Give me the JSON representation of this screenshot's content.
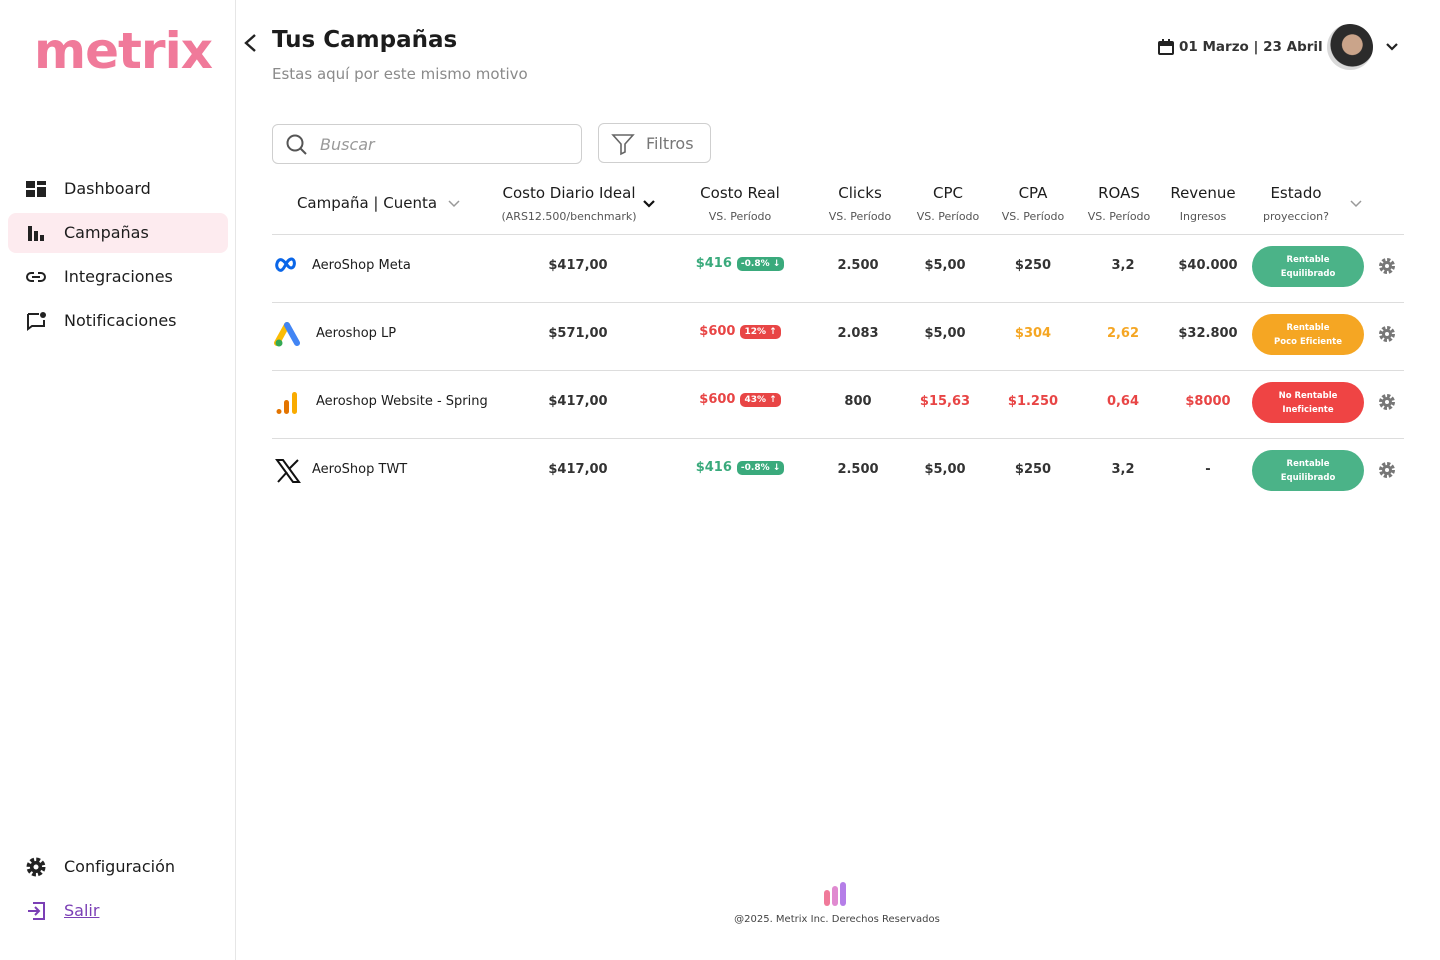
{
  "sidebar": {
    "logo": "metrix",
    "nav": [
      "Dashboard",
      "Campañas",
      "Integraciones",
      "Notificaciones"
    ],
    "active": 1,
    "bottom": [
      "Configuración",
      "Salir"
    ]
  },
  "header": {
    "title": "Tus Campañas",
    "subtitle": "Estas aquí por este mismo motivo",
    "date_range": "01 Marzo | 23 Abril"
  },
  "toolbar": {
    "search": "Buscar",
    "filters": "Filtros"
  },
  "table": {
    "columns": [
      {
        "title": "Campaña | Cuenta"
      },
      {
        "title": "Costo Diario Ideal",
        "subtitle": "(ARS12.500/benchmark)"
      },
      {
        "title": "Costo Real",
        "subtitle": "VS. Período"
      },
      {
        "title": "Clicks",
        "subtitle": "VS. Período"
      },
      {
        "title": "CPC",
        "subtitle": "VS. Período"
      },
      {
        "title": "CPA",
        "subtitle": "VS. Período"
      },
      {
        "title": "ROAS",
        "subtitle": "VS. Período"
      },
      {
        "title": "Revenue",
        "subtitle": "Ingresos"
      },
      {
        "title": "Estado",
        "subtitle": "proyeccion?"
      }
    ],
    "rows": [
      {
        "name": "AeroShop Meta",
        "ideal": "$417,00",
        "real": {
          "text": "$416",
          "badge": "-0.8% ↓",
          "color": "#3aaa7c"
        },
        "metrics": [
          {
            "text": "2.500"
          },
          {
            "text": "$5,00"
          },
          {
            "text": "$250"
          },
          {
            "text": "3,2"
          },
          {
            "text": "$40.000"
          }
        ],
        "status": {
          "lines": [
            "Rentable",
            "Equilibrado"
          ],
          "color": "#4bb388"
        }
      },
      {
        "name": "Aeroshop LP",
        "ideal": "$571,00",
        "real": {
          "text": "$600",
          "badge": "12% ↑",
          "color": "#e84545"
        },
        "metrics": [
          {
            "text": "2.083"
          },
          {
            "text": "$5,00"
          },
          {
            "text": "$304",
            "color": "#f5a623"
          },
          {
            "text": "2,62",
            "color": "#f5a623"
          },
          {
            "text": "$32.800"
          }
        ],
        "status": {
          "lines": [
            "Rentable",
            "Poco Eficiente"
          ],
          "color": "#f5a623"
        }
      },
      {
        "name": "Aeroshop Website - Spring",
        "ideal": "$417,00",
        "real": {
          "text": "$600",
          "badge": "43% ↑",
          "color": "#e84545"
        },
        "metrics": [
          {
            "text": "800"
          },
          {
            "text": "$15,63",
            "color": "#e84545"
          },
          {
            "text": "$1.250",
            "color": "#e84545"
          },
          {
            "text": "0,64",
            "color": "#e84545"
          },
          {
            "text": "$8000",
            "color": "#e84545"
          }
        ],
        "status": {
          "lines": [
            "No Rentable",
            "Ineficiente"
          ],
          "color": "#ef4444"
        }
      },
      {
        "name": "AeroShop TWT",
        "ideal": "$417,00",
        "real": {
          "text": "$416",
          "badge": "-0.8% ↓",
          "color": "#3aaa7c"
        },
        "metrics": [
          {
            "text": "2.500"
          },
          {
            "text": "$5,00"
          },
          {
            "text": "$250"
          },
          {
            "text": "3,2"
          },
          {
            "text": "-"
          }
        ],
        "status": {
          "lines": [
            "Rentable",
            "Equilibrado"
          ],
          "color": "#4bb388"
        }
      }
    ]
  },
  "footer": {
    "copyright": "@2025. Metrix Inc. Derechos Reservados"
  }
}
